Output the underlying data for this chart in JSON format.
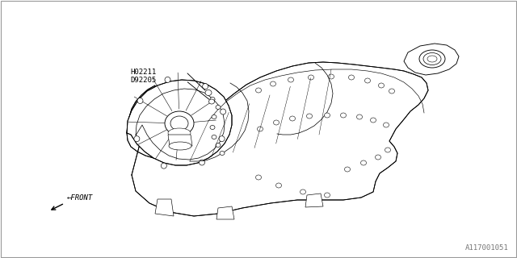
{
  "background_color": "#ffffff",
  "fig_width": 6.4,
  "fig_height": 3.2,
  "dpi": 100,
  "label1": "H02211",
  "label2": "D92205",
  "front_label": "←FRONT",
  "diagram_id": "A117001051",
  "line_color": "#000000",
  "label_fontsize": 6.5,
  "front_fontsize": 6.5,
  "id_fontsize": 6.5,
  "lw": 0.65
}
